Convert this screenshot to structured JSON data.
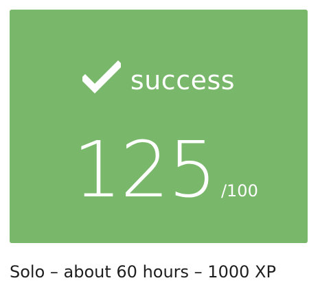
{
  "card": {
    "background_color": "#79b76a",
    "icon": "check-icon",
    "status_label": "success",
    "score": {
      "value": "125",
      "max": "/100"
    }
  },
  "caption": "Solo – about 60 hours – 1000 XP"
}
